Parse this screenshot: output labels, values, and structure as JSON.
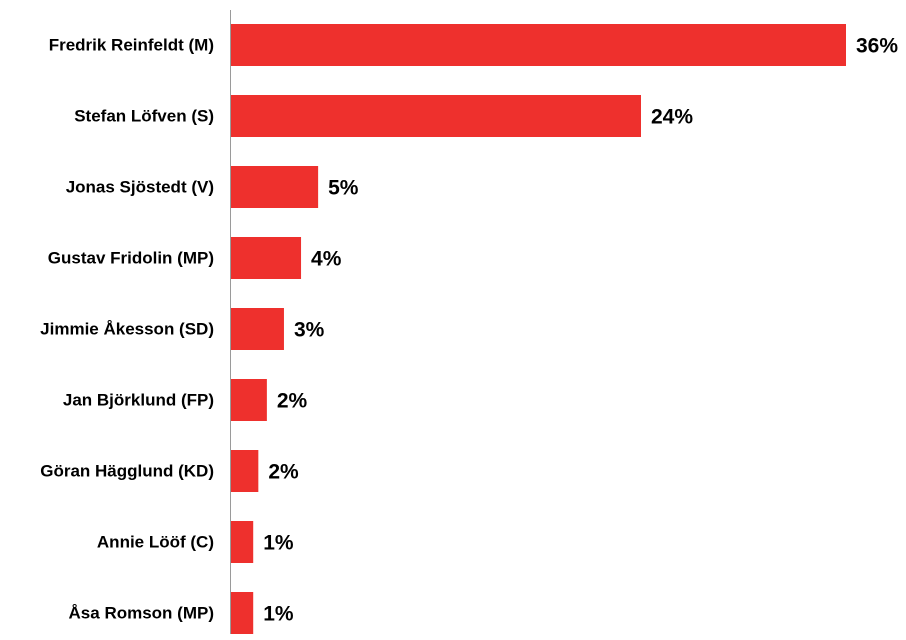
{
  "chart_data": {
    "type": "bar",
    "orientation": "horizontal",
    "categories": [
      "Fredrik Reinfeldt (M)",
      "Stefan Löfven (S)",
      "Jonas Sjöstedt (V)",
      "Gustav Fridolin (MP)",
      "Jimmie Åkesson (SD)",
      "Jan Björklund (FP)",
      "Göran Hägglund (KD)",
      "Annie Lööf (C)",
      "Åsa Romson (MP)"
    ],
    "values": [
      36,
      24,
      5,
      4,
      3,
      2,
      2,
      1,
      1
    ],
    "plotted_values": [
      36,
      24,
      5.1,
      4.1,
      3.1,
      2.1,
      1.6,
      1.3,
      1.3
    ],
    "value_labels": [
      "36%",
      "24%",
      "5%",
      "4%",
      "3%",
      "2%",
      "2%",
      "1%",
      "1%"
    ],
    "xlim": [
      0,
      36
    ],
    "grid": false,
    "legend": "none",
    "bar_color": "#ee302d",
    "axis_color": "#9a9a9a"
  }
}
